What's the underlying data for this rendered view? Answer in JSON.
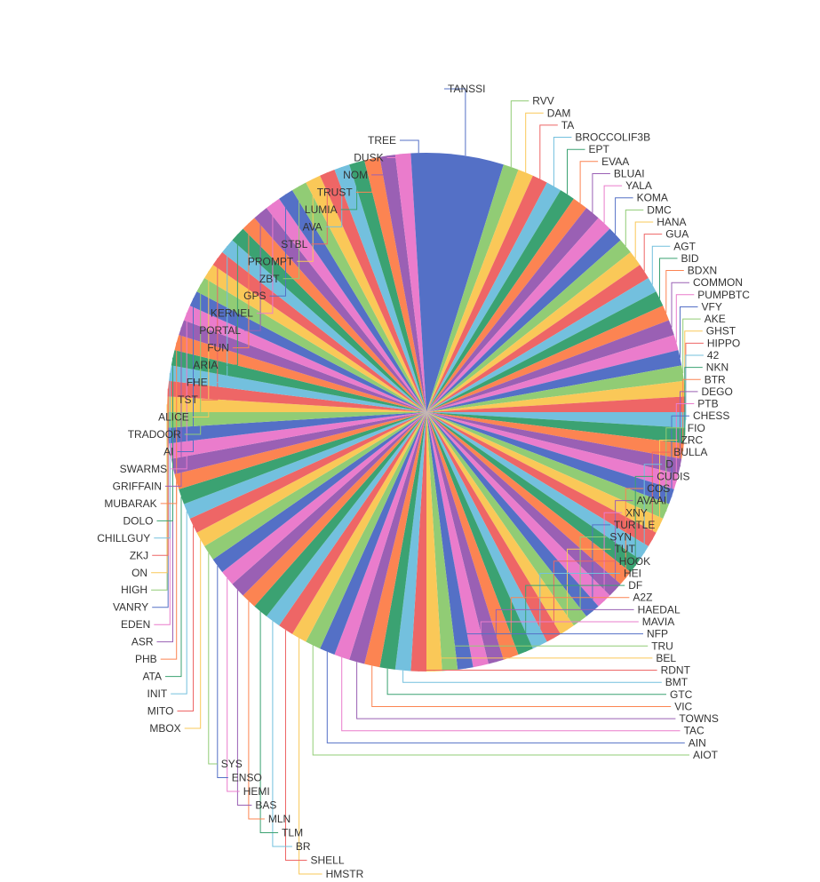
{
  "chart_data": {
    "type": "pie",
    "title": "",
    "note": "",
    "palette": [
      "#5470c6",
      "#91cc75",
      "#fac858",
      "#ee6666",
      "#73c0de",
      "#3ba272",
      "#fc8452",
      "#9a60b4",
      "#ea7ccc"
    ],
    "slices": [
      {
        "label": "TANSSI",
        "value": 2
      },
      {
        "label": "RVV",
        "value": 0.4
      },
      {
        "label": "DAM",
        "value": 0.4
      },
      {
        "label": "TA",
        "value": 0.4
      },
      {
        "label": "BROCCOLIF3B",
        "value": 0.4
      },
      {
        "label": "EPT",
        "value": 0.4
      },
      {
        "label": "EVAA",
        "value": 0.4
      },
      {
        "label": "BLUAI",
        "value": 0.4
      },
      {
        "label": "YALA",
        "value": 0.4
      },
      {
        "label": "KOMA",
        "value": 0.4
      },
      {
        "label": "DMC",
        "value": 0.4
      },
      {
        "label": "HANA",
        "value": 0.4
      },
      {
        "label": "GUA",
        "value": 0.4
      },
      {
        "label": "AGT",
        "value": 0.4
      },
      {
        "label": "BID",
        "value": 0.4
      },
      {
        "label": "BDXN",
        "value": 0.4
      },
      {
        "label": "COMMON",
        "value": 0.4
      },
      {
        "label": "PUMPBTC",
        "value": 0.4
      },
      {
        "label": "VFY",
        "value": 0.4
      },
      {
        "label": "AKE",
        "value": 0.4
      },
      {
        "label": "GHST",
        "value": 0.4
      },
      {
        "label": "HIPPO",
        "value": 0.4
      },
      {
        "label": "42",
        "value": 0.4
      },
      {
        "label": "NKN",
        "value": 0.4
      },
      {
        "label": "BTR",
        "value": 0.4
      },
      {
        "label": "DEGO",
        "value": 0.4
      },
      {
        "label": "PTB",
        "value": 0.4
      },
      {
        "label": "CHESS",
        "value": 0.4
      },
      {
        "label": "FIO",
        "value": 0.4
      },
      {
        "label": "ZRC",
        "value": 0.4
      },
      {
        "label": "BULLA",
        "value": 0.4
      },
      {
        "label": "D",
        "value": 0.4
      },
      {
        "label": "CUDIS",
        "value": 0.4
      },
      {
        "label": "COS",
        "value": 0.4
      },
      {
        "label": "AVAAI",
        "value": 0.4
      },
      {
        "label": "XNY",
        "value": 0.4
      },
      {
        "label": "TURTLE",
        "value": 0.4
      },
      {
        "label": "SYN",
        "value": 0.4
      },
      {
        "label": "TUT",
        "value": 0.4
      },
      {
        "label": "HOOK",
        "value": 0.4
      },
      {
        "label": "HEI",
        "value": 0.4
      },
      {
        "label": "DF",
        "value": 0.4
      },
      {
        "label": "A2Z",
        "value": 0.4
      },
      {
        "label": "HAEDAL",
        "value": 0.4
      },
      {
        "label": "MAVIA",
        "value": 0.4
      },
      {
        "label": "NFP",
        "value": 0.4
      },
      {
        "label": "TRU",
        "value": 0.4
      },
      {
        "label": "BEL",
        "value": 0.4
      },
      {
        "label": "RDNT",
        "value": 0.4
      },
      {
        "label": "BMT",
        "value": 0.4
      },
      {
        "label": "GTC",
        "value": 0.4
      },
      {
        "label": "VIC",
        "value": 0.4
      },
      {
        "label": "TOWNS",
        "value": 0.4
      },
      {
        "label": "TAC",
        "value": 0.4
      },
      {
        "label": "AIN",
        "value": 0.4
      },
      {
        "label": "AIOT",
        "value": 0.4
      },
      {
        "label": "HMSTR",
        "value": 0.4
      },
      {
        "label": "SHELL",
        "value": 0.4
      },
      {
        "label": "BR",
        "value": 0.4
      },
      {
        "label": "TLM",
        "value": 0.4
      },
      {
        "label": "MLN",
        "value": 0.4
      },
      {
        "label": "BAS",
        "value": 0.4
      },
      {
        "label": "HEMI",
        "value": 0.4
      },
      {
        "label": "ENSO",
        "value": 0.4
      },
      {
        "label": "SYS",
        "value": 0.4
      },
      {
        "label": "MBOX",
        "value": 0.4
      },
      {
        "label": "MITO",
        "value": 0.4
      },
      {
        "label": "INIT",
        "value": 0.4
      },
      {
        "label": "ATA",
        "value": 0.4
      },
      {
        "label": "PHB",
        "value": 0.4
      },
      {
        "label": "ASR",
        "value": 0.4
      },
      {
        "label": "EDEN",
        "value": 0.4
      },
      {
        "label": "VANRY",
        "value": 0.4
      },
      {
        "label": "HIGH",
        "value": 0.4
      },
      {
        "label": "ON",
        "value": 0.4
      },
      {
        "label": "ZKJ",
        "value": 0.4
      },
      {
        "label": "CHILLGUY",
        "value": 0.4
      },
      {
        "label": "DOLO",
        "value": 0.4
      },
      {
        "label": "MUBARAK",
        "value": 0.4
      },
      {
        "label": "GRIFFAIN",
        "value": 0.4
      },
      {
        "label": "SWARMS",
        "value": 0.4
      },
      {
        "label": "AI",
        "value": 0.4
      },
      {
        "label": "TRADOOR",
        "value": 0.4
      },
      {
        "label": "ALICE",
        "value": 0.4
      },
      {
        "label": "TST",
        "value": 0.4
      },
      {
        "label": "FHE",
        "value": 0.4
      },
      {
        "label": "ARIA",
        "value": 0.4
      },
      {
        "label": "FUN",
        "value": 0.4
      },
      {
        "label": "PORTAL",
        "value": 0.4
      },
      {
        "label": "KERNEL",
        "value": 0.4
      },
      {
        "label": "GPS",
        "value": 0.4
      },
      {
        "label": "ZBT",
        "value": 0.4
      },
      {
        "label": "PROMPT",
        "value": 0.4
      },
      {
        "label": "STBL",
        "value": 0.4
      },
      {
        "label": "AVA",
        "value": 0.4
      },
      {
        "label": "LUMIA",
        "value": 0.4
      },
      {
        "label": "TRUST",
        "value": 0.4
      },
      {
        "label": "NOM",
        "value": 0.4
      },
      {
        "label": "DUSK",
        "value": 0.4
      },
      {
        "label": "TREE",
        "value": 0.4
      }
    ]
  }
}
